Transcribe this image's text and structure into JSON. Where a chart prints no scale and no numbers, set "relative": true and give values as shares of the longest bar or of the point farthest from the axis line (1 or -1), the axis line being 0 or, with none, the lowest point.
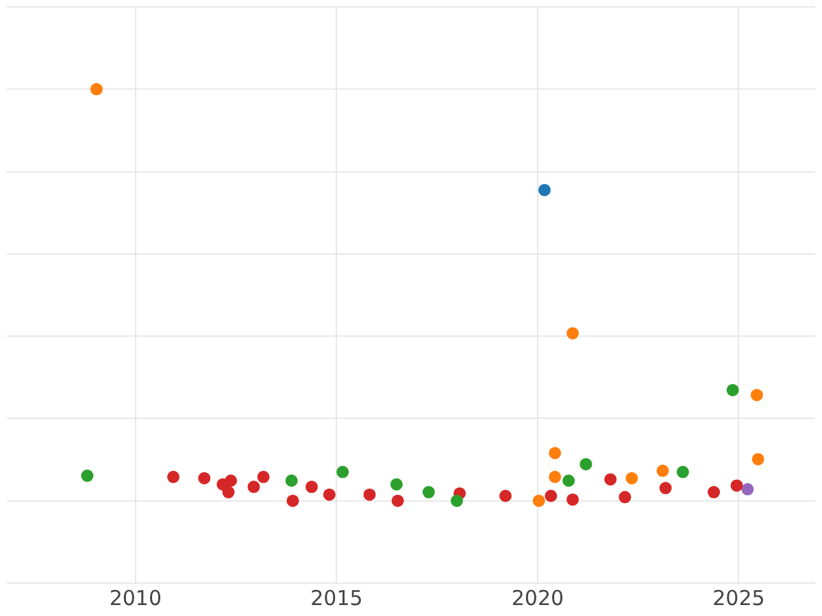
{
  "chart_data": {
    "type": "scatter",
    "relative": true,
    "xlim": [
      2006.8,
      2026.9
    ],
    "xticks": [
      2010,
      2015,
      2020,
      2025
    ],
    "grid": true,
    "legend": false,
    "marker": "circle",
    "series": [
      {
        "color": "#1f77b4",
        "x": [
          2020.17
        ],
        "values": [
          0.755
        ]
      },
      {
        "color": "#ff7f0e",
        "x": [
          2009.03,
          2020.87,
          2025.45,
          2020.43,
          2020.43,
          2020.03,
          2022.34,
          2023.11,
          2025.48
        ],
        "values": [
          1.0,
          0.407,
          0.257,
          0.116,
          0.058,
          0.0,
          0.055,
          0.073,
          0.101
        ]
      },
      {
        "color": "#2ca02c",
        "x": [
          2008.8,
          2013.88,
          2015.15,
          2016.49,
          2017.29,
          2017.99,
          2020.77,
          2021.2,
          2023.61,
          2024.85
        ],
        "values": [
          0.061,
          0.049,
          0.07,
          0.04,
          0.021,
          0.0,
          0.049,
          0.089,
          0.07,
          0.269
        ]
      },
      {
        "color": "#d62728",
        "x": [
          2010.94,
          2011.71,
          2012.17,
          2012.37,
          2012.31,
          2012.94,
          2013.18,
          2013.91,
          2014.38,
          2014.82,
          2015.82,
          2016.52,
          2018.06,
          2019.2,
          2020.33,
          2020.87,
          2021.81,
          2022.17,
          2023.18,
          2024.38,
          2024.95
        ],
        "values": [
          0.058,
          0.055,
          0.04,
          0.049,
          0.021,
          0.034,
          0.058,
          0.0,
          0.034,
          0.015,
          0.015,
          0.0,
          0.018,
          0.012,
          0.012,
          0.003,
          0.052,
          0.009,
          0.031,
          0.021,
          0.037
        ]
      },
      {
        "color": "#9467bd",
        "x": [
          2025.22
        ],
        "values": [
          0.028
        ]
      }
    ]
  }
}
